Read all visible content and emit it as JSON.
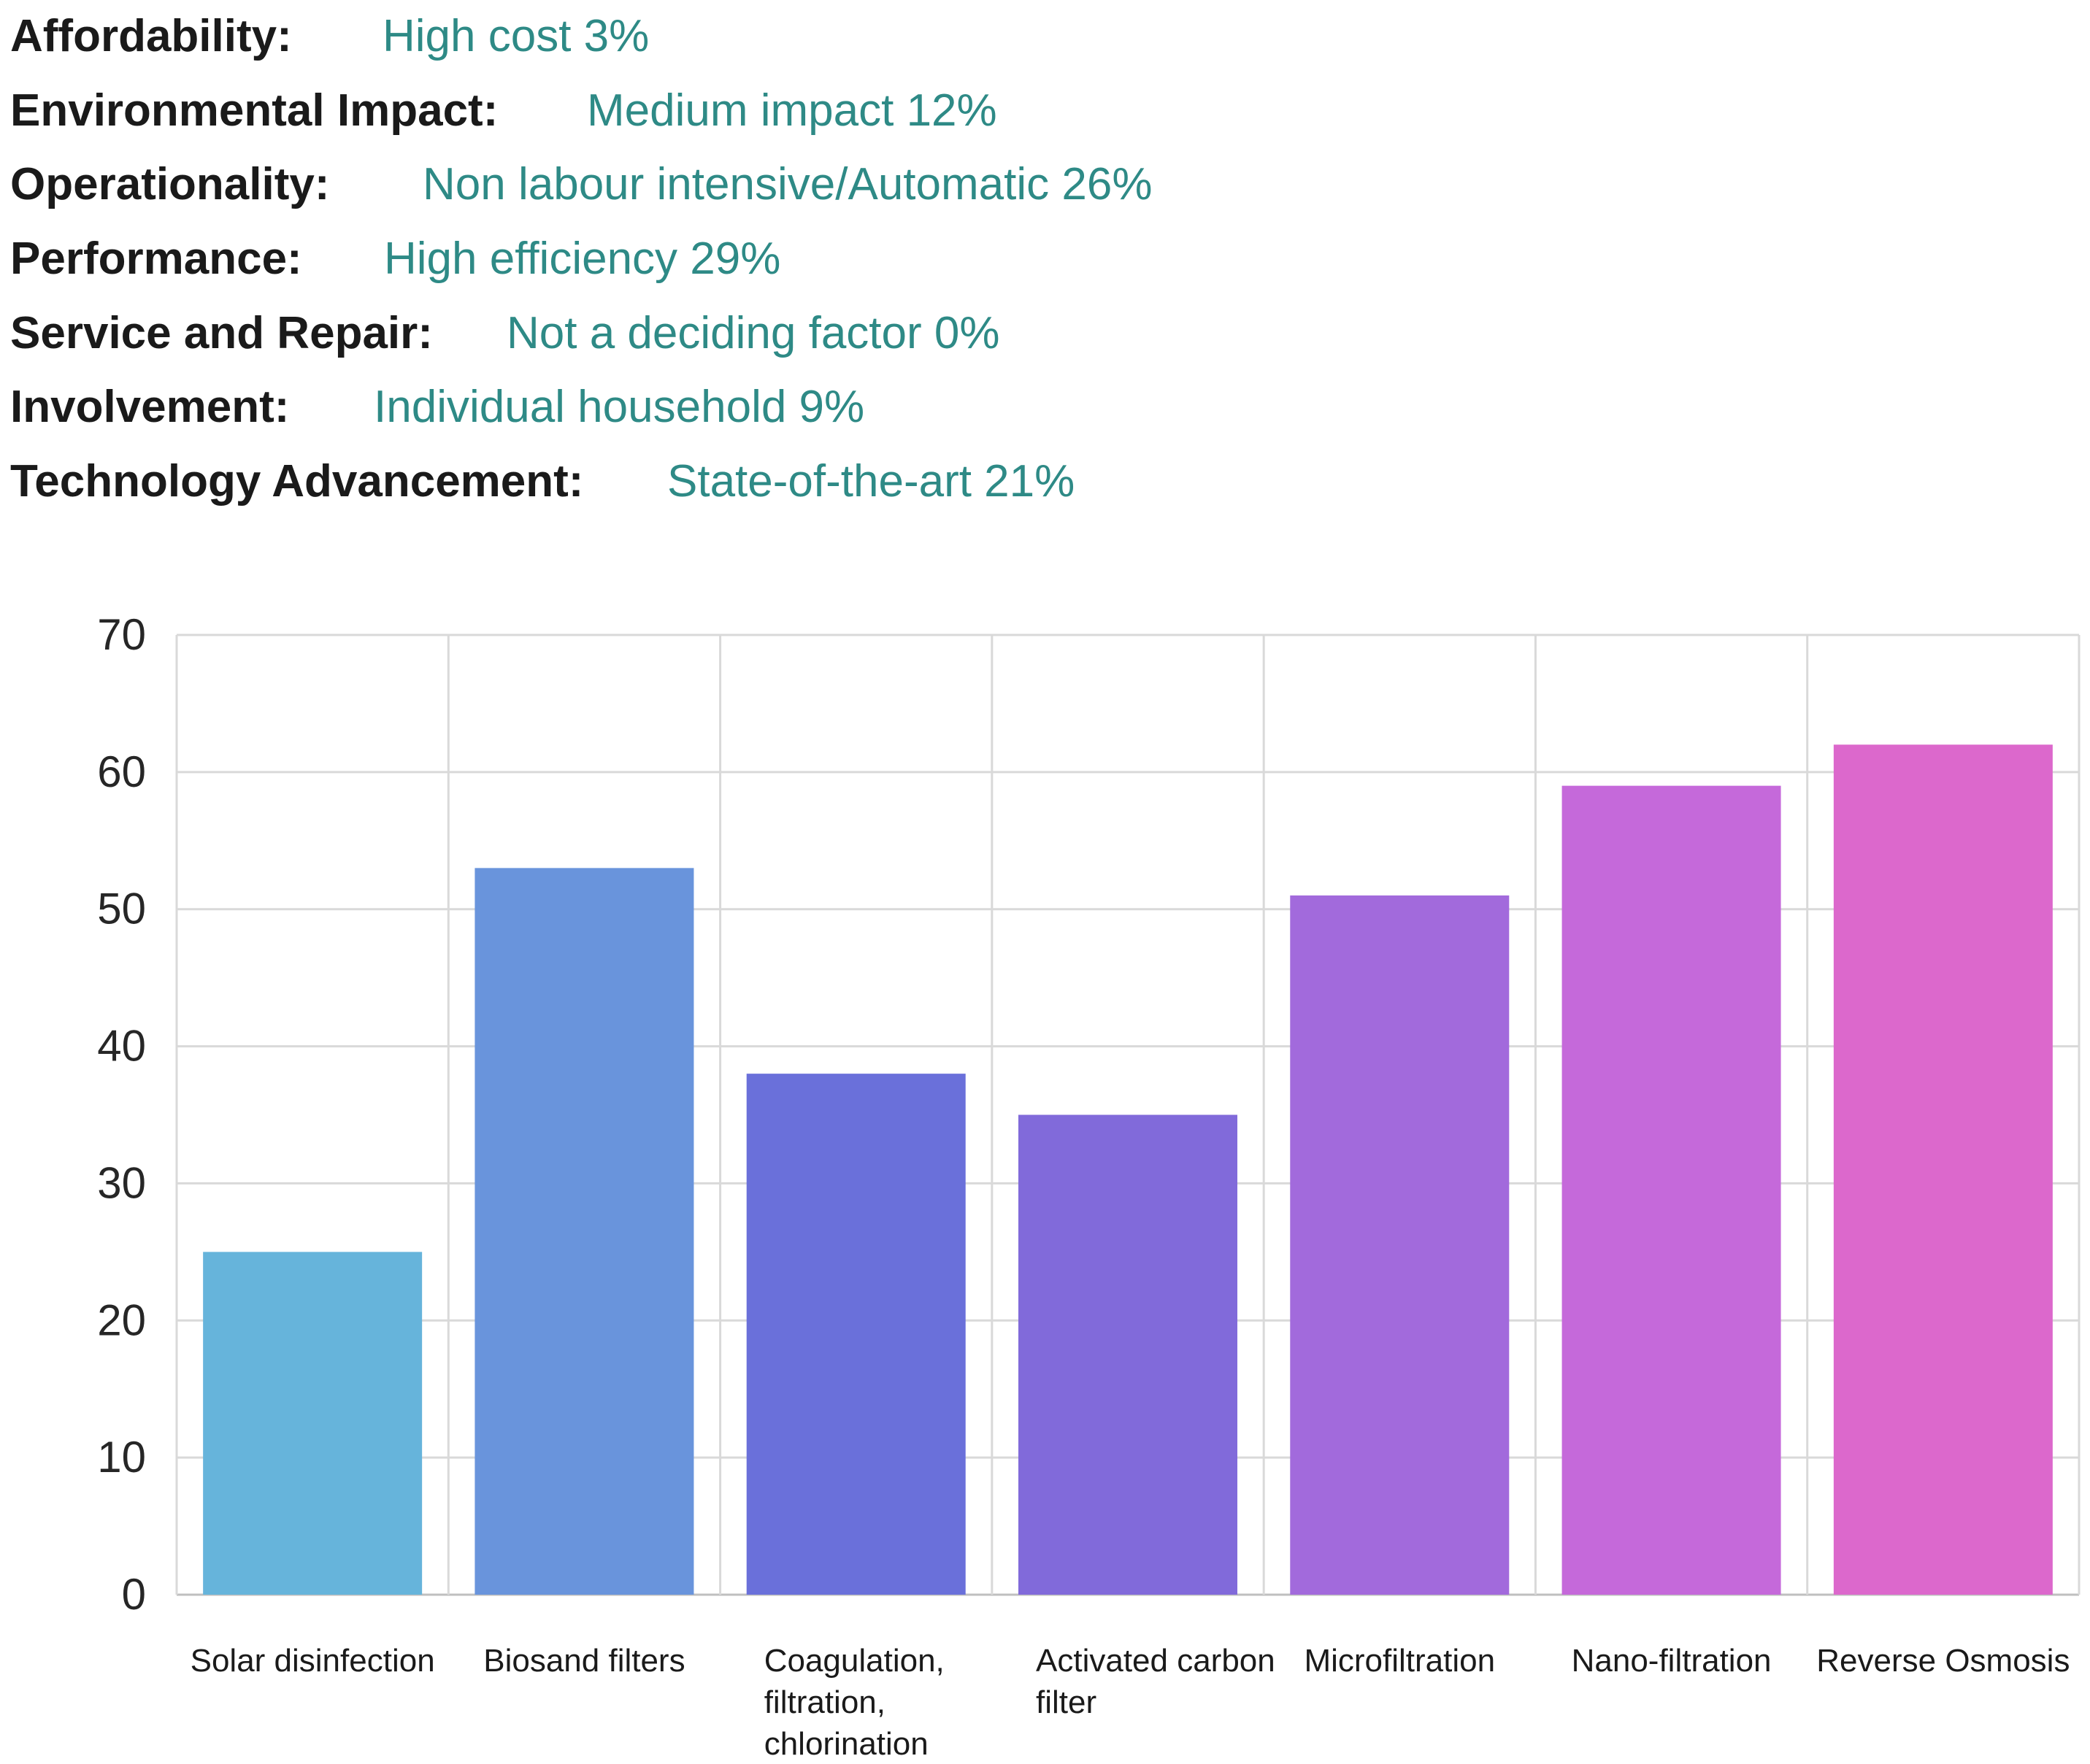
{
  "criteria": [
    {
      "label": "Affordability:",
      "value": "High cost 3%"
    },
    {
      "label": "Environmental Impact:",
      "value": "Medium impact 12%"
    },
    {
      "label": "Operationality:",
      "value": "Non labour intensive/Automatic 26%"
    },
    {
      "label": "Performance:",
      "value": "High efficiency 29%"
    },
    {
      "label": "Service and Repair:",
      "value": "Not a deciding factor 0%"
    },
    {
      "label": "Involvement:",
      "value": "Individual household 9%"
    },
    {
      "label": "Technology Advancement:",
      "value": "State-of-the-art 21%"
    }
  ],
  "colors": {
    "label_text": "#1a1a1a",
    "value_text": "#2e8a86",
    "grid": "#d9d9d9"
  },
  "chart_data": {
    "type": "bar",
    "title": "",
    "xlabel": "",
    "ylabel": "",
    "ylim": [
      0,
      70
    ],
    "yticks": [
      0,
      10,
      20,
      30,
      40,
      50,
      60,
      70
    ],
    "grid": true,
    "legend": "none",
    "categories": [
      "Solar disinfection",
      "Biosand filters",
      "Coagulation, filtration, chlorination",
      "Activated carbon filter",
      "Microfiltration",
      "Nano-filtration",
      "Reverse Osmosis"
    ],
    "category_lines": [
      [
        "Solar disinfection"
      ],
      [
        "Biosand filters"
      ],
      [
        "Coagulation,",
        "filtration,",
        "chlorination"
      ],
      [
        "Activated carbon",
        "filter"
      ],
      [
        "Microfiltration"
      ],
      [
        "Nano-filtration"
      ],
      [
        "Reverse Osmosis"
      ]
    ],
    "values": [
      25,
      53,
      38,
      35,
      51,
      59,
      62
    ],
    "bar_colors": [
      "#66b4db",
      "#6994dc",
      "#6a70da",
      "#816ada",
      "#a26adc",
      "#c569da",
      "#dc68cc"
    ]
  }
}
